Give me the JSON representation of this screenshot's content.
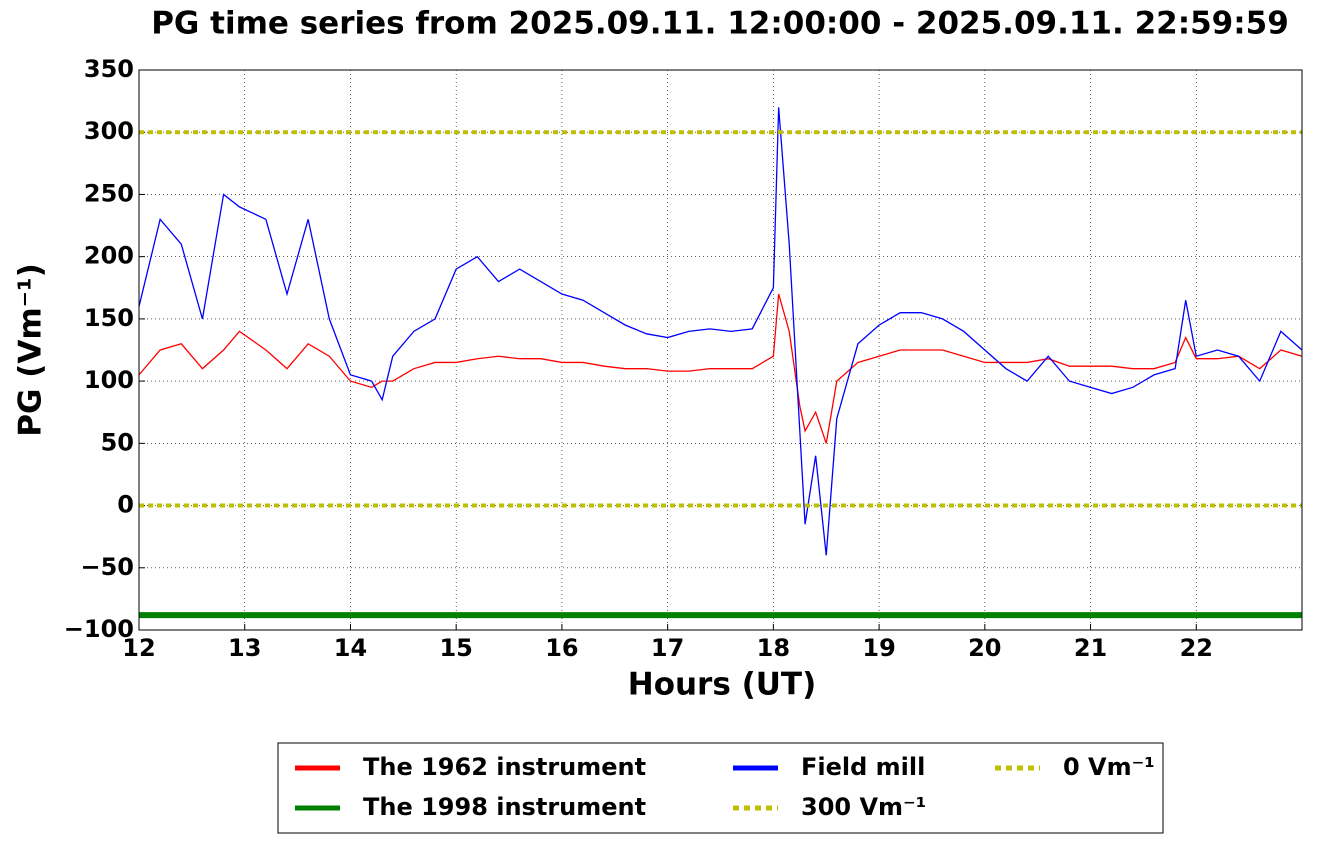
{
  "chart_data": {
    "type": "line",
    "title": "PG time series from 2025.09.11. 12:00:00 - 2025.09.11. 22:59:59",
    "xlabel": "Hours (UT)",
    "ylabel": "PG (Vm⁻¹)",
    "x": [
      12,
      12.2,
      12.4,
      12.6,
      12.8,
      12.95,
      13.2,
      13.4,
      13.6,
      13.8,
      14,
      14.2,
      14.3,
      14.4,
      14.6,
      14.8,
      15,
      15.2,
      15.4,
      15.6,
      15.8,
      16,
      16.2,
      16.4,
      16.6,
      16.8,
      17,
      17.2,
      17.4,
      17.6,
      17.8,
      18,
      18.05,
      18.15,
      18.25,
      18.3,
      18.4,
      18.5,
      18.6,
      18.8,
      19,
      19.2,
      19.4,
      19.6,
      19.8,
      20,
      20.2,
      20.4,
      20.6,
      20.8,
      21,
      21.2,
      21.4,
      21.6,
      21.8,
      21.9,
      22,
      22.2,
      22.4,
      22.6,
      22.8,
      23
    ],
    "series": [
      {
        "name": "The 1962 instrument",
        "color": "#ff0000",
        "values": [
          105,
          125,
          130,
          110,
          125,
          140,
          125,
          110,
          130,
          120,
          100,
          95,
          100,
          100,
          110,
          115,
          115,
          118,
          120,
          118,
          118,
          115,
          115,
          112,
          110,
          110,
          108,
          108,
          110,
          110,
          110,
          120,
          170,
          140,
          80,
          60,
          75,
          50,
          100,
          115,
          120,
          125,
          125,
          125,
          120,
          115,
          115,
          115,
          118,
          112,
          112,
          112,
          110,
          110,
          115,
          135,
          118,
          118,
          120,
          110,
          125,
          120
        ]
      },
      {
        "name": "The 1998 instrument",
        "color": "#008000",
        "values": [
          -88,
          -88,
          -88,
          -88,
          -88,
          -88,
          -88,
          -88,
          -88,
          -88,
          -88,
          -88,
          -88,
          -88,
          -88,
          -88,
          -88,
          -88,
          -88,
          -88,
          -88,
          -88,
          -88,
          -88,
          -88,
          -88,
          -88,
          -88,
          -88,
          -88,
          -88,
          -88,
          -88,
          -88,
          -88,
          -88,
          -88,
          -88,
          -88,
          -88,
          -88,
          -88,
          -88,
          -88,
          -88,
          -88,
          -88,
          -88,
          -88,
          -88,
          -88,
          -88,
          -88,
          -88,
          -88,
          -88,
          -88,
          -88,
          -88,
          -88,
          -88,
          -88
        ]
      },
      {
        "name": "Field mill",
        "color": "#0000ff",
        "values": [
          160,
          230,
          210,
          150,
          250,
          240,
          230,
          170,
          230,
          150,
          105,
          100,
          85,
          120,
          140,
          150,
          190,
          200,
          180,
          190,
          180,
          170,
          165,
          155,
          145,
          138,
          135,
          140,
          142,
          140,
          142,
          175,
          320,
          210,
          60,
          -15,
          40,
          -40,
          70,
          130,
          145,
          155,
          155,
          150,
          140,
          125,
          110,
          100,
          120,
          100,
          95,
          90,
          95,
          105,
          110,
          165,
          120,
          125,
          120,
          100,
          140,
          125
        ]
      }
    ],
    "hlines": [
      {
        "name": "300 Vm⁻¹",
        "color": "#bfbf00",
        "value": 300
      },
      {
        "name": "0 Vm⁻¹",
        "color": "#bfbf00",
        "value": 0
      }
    ],
    "xlim": [
      12,
      23
    ],
    "ylim": [
      -100,
      350
    ],
    "xticks": [
      12,
      13,
      14,
      15,
      16,
      17,
      18,
      19,
      20,
      21,
      22
    ],
    "yticks": [
      {
        "value": -100,
        "label": "−100"
      },
      {
        "value": -50,
        "label": "−50"
      },
      0,
      50,
      100,
      150,
      200,
      250,
      300,
      350
    ],
    "grid": true,
    "legend": "bottom"
  }
}
